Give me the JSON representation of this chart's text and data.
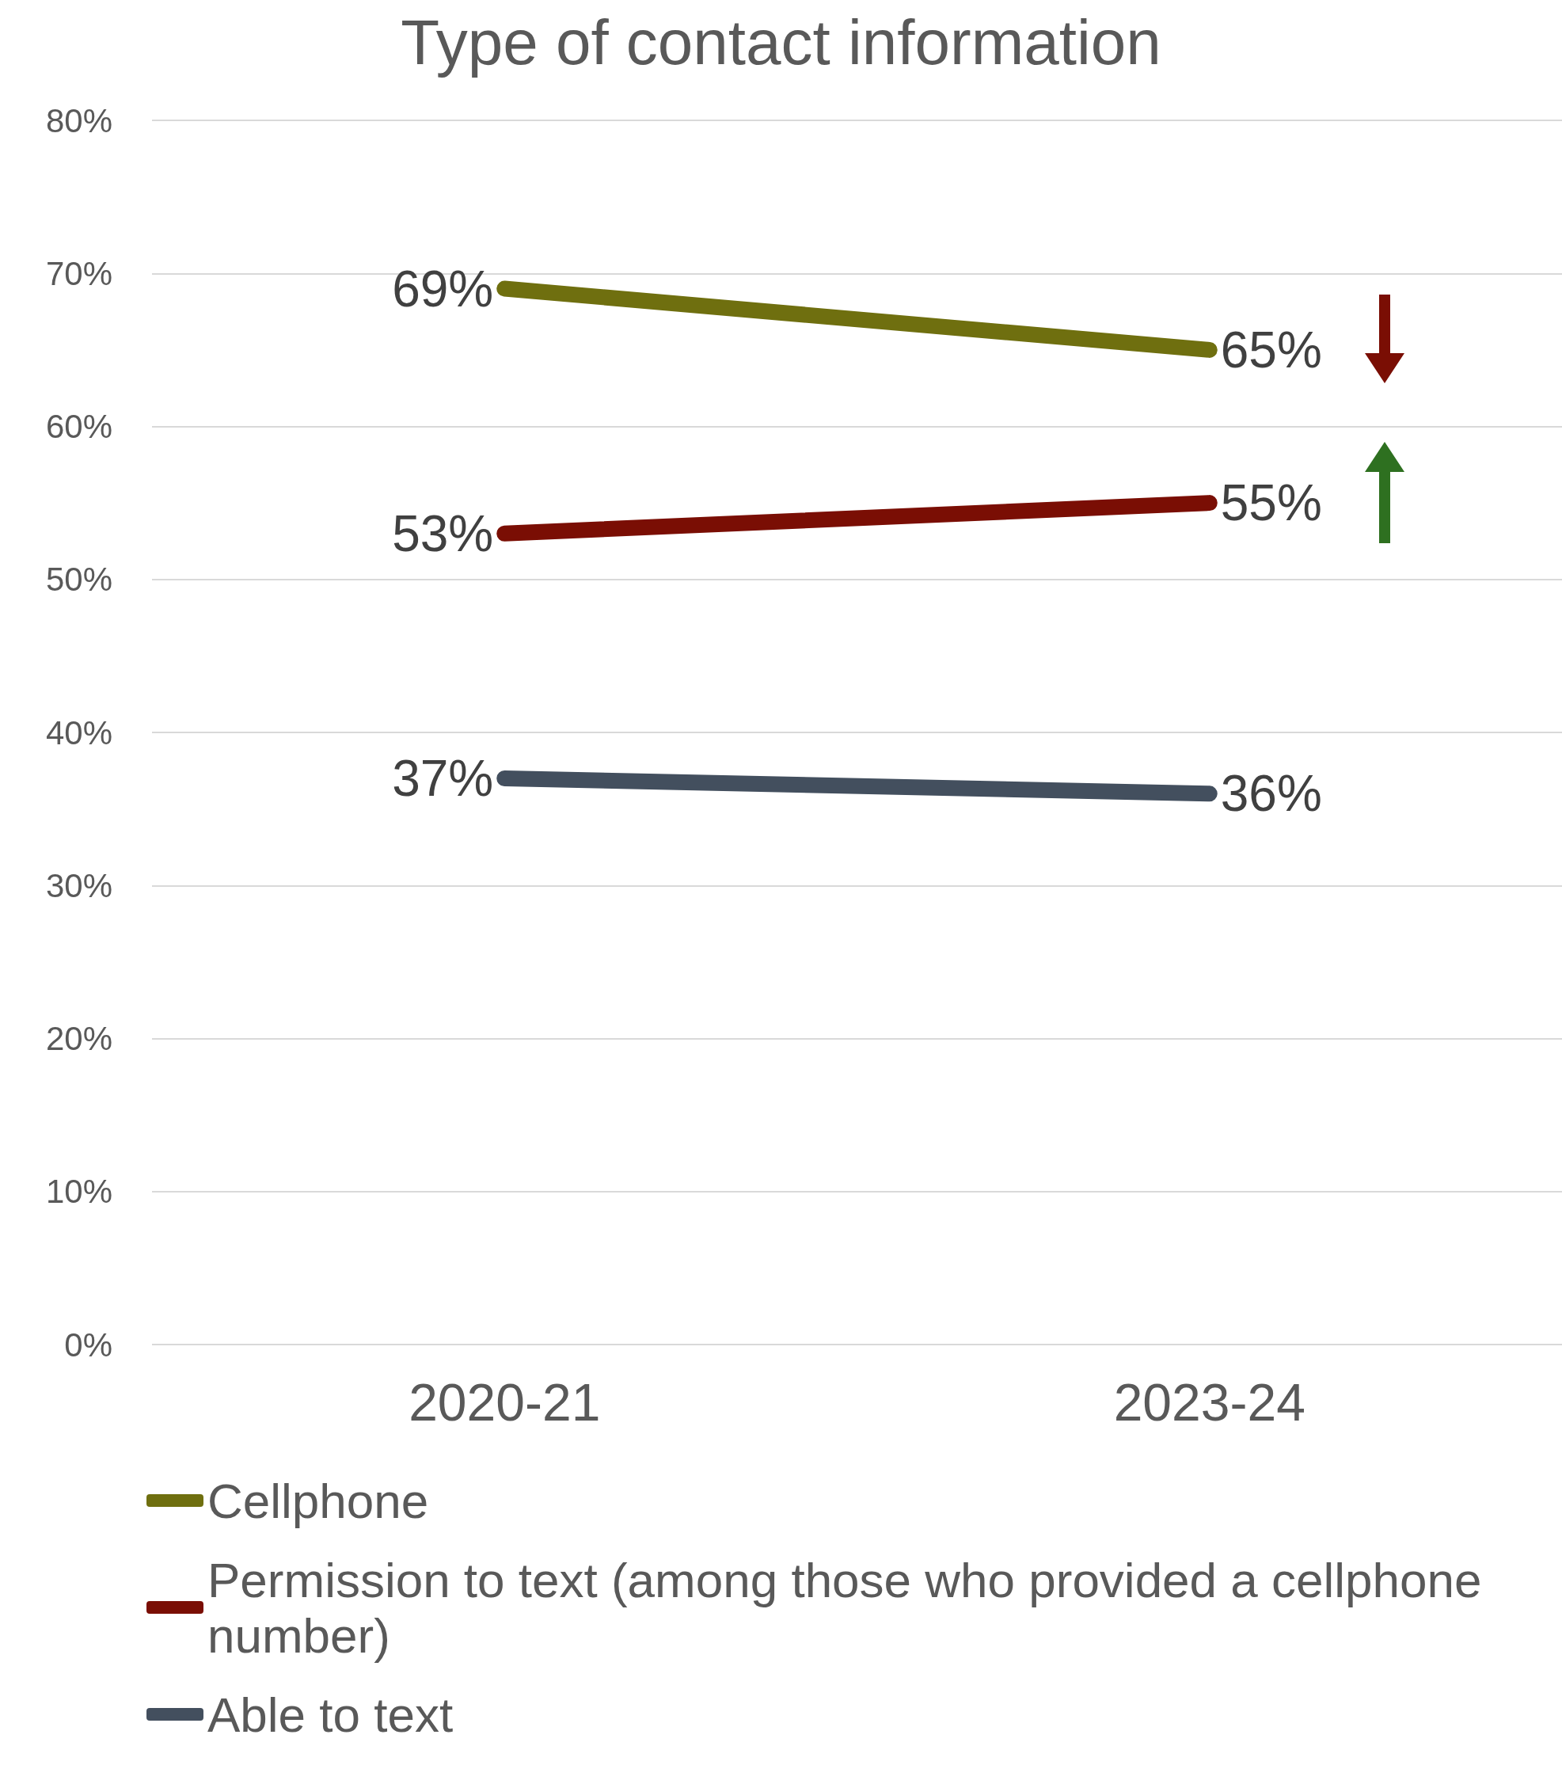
{
  "chart_data": {
    "type": "line",
    "title": "Type of contact information",
    "categories": [
      "2020-21",
      "2023-24"
    ],
    "series": [
      {
        "name": "Cellphone",
        "color": "#6f6f0f",
        "values": [
          69,
          65
        ],
        "value_labels": [
          "69%",
          "65%"
        ]
      },
      {
        "name": "Permission to text (among those who provided a cellphone number)",
        "color": "#7a0e04",
        "values": [
          53,
          55
        ],
        "value_labels": [
          "53%",
          "55%"
        ]
      },
      {
        "name": "Able to text",
        "color": "#434f5e",
        "values": [
          37,
          36
        ],
        "value_labels": [
          "37%",
          "36%"
        ]
      }
    ],
    "ylim": [
      0,
      80
    ],
    "yticks": [
      {
        "value": 0,
        "label": "0%"
      },
      {
        "value": 10,
        "label": "10%"
      },
      {
        "value": 20,
        "label": "20%"
      },
      {
        "value": 30,
        "label": "30%"
      },
      {
        "value": 40,
        "label": "40%"
      },
      {
        "value": 50,
        "label": "50%"
      },
      {
        "value": 60,
        "label": "60%"
      },
      {
        "value": 70,
        "label": "70%"
      },
      {
        "value": 80,
        "label": "80%"
      }
    ],
    "grid": "y",
    "legend": "bottom",
    "marker": "none",
    "line_style": "solid"
  }
}
